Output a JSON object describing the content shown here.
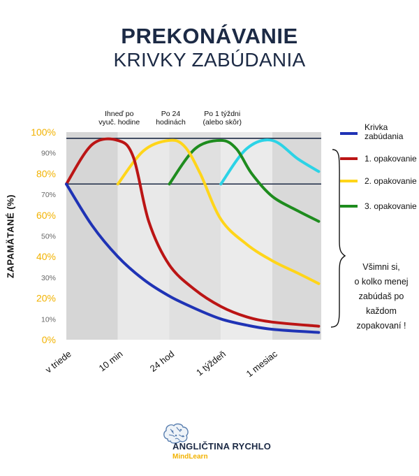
{
  "title": {
    "line1": "PREKONÁVANIE",
    "line2": "KRIVKY ZABÚDANIA"
  },
  "brand": {
    "name": "ANGLIČTINA RYCHLO",
    "sub": "MindLearn"
  },
  "note": [
    "Všimni si,",
    "o kolko menej",
    "zabúdaš po",
    "každom",
    "zopakovaní !"
  ],
  "chart_data": {
    "type": "line",
    "ylabel": "ZAPAMÄTANÉ  (%)",
    "ylim": [
      0,
      100
    ],
    "y_ticks_major": [
      "0%",
      "20%",
      "40%",
      "60%",
      "80%",
      "100%"
    ],
    "y_ticks_minor": [
      "10%",
      "30%",
      "50%",
      "70%",
      "90%"
    ],
    "x_categories": [
      "v triede",
      "10 min",
      "24 hod",
      "1 týždeň",
      "1 mesiac"
    ],
    "phase_labels": [
      {
        "at": 1,
        "lines": [
          "Ihneď po",
          "vyuč. hodine"
        ]
      },
      {
        "at": 2,
        "lines": [
          "Po 24",
          "hodinách"
        ]
      },
      {
        "at": 3,
        "lines": [
          "Po 1 týždni",
          "(alebo skôr)"
        ]
      }
    ],
    "reference_lines": [
      97,
      75
    ],
    "grid": false,
    "legend_position": "right",
    "series": [
      {
        "name": "Krivka zabúdania",
        "color": "#1f33b5",
        "x": [
          0,
          0.5,
          1,
          1.5,
          2,
          2.5,
          3,
          3.5,
          4,
          4.9
        ],
        "y": [
          75,
          55,
          40,
          29,
          21,
          15,
          10,
          7,
          5,
          3.5
        ]
      },
      {
        "name": "1. opakovanie",
        "color": "#bb1515",
        "x": [
          0,
          0.5,
          1,
          1.3,
          1.6,
          2,
          2.5,
          3,
          3.5,
          4,
          4.9
        ],
        "y": [
          75,
          94,
          96,
          88,
          57,
          36,
          24,
          16,
          11,
          8.5,
          6.5
        ]
      },
      {
        "name": "2. opakovanie",
        "color": "#ffd51a",
        "x": [
          1,
          1.5,
          2,
          2.3,
          2.6,
          3,
          3.5,
          4,
          4.5,
          4.9
        ],
        "y": [
          75,
          91,
          96,
          93,
          80,
          58,
          46,
          38,
          32,
          27
        ]
      },
      {
        "name": "3. opakovanie",
        "color": "#1e8c1e",
        "x": [
          2,
          2.5,
          3,
          3.3,
          3.6,
          4,
          4.5,
          4.9
        ],
        "y": [
          75,
          92,
          96,
          92,
          80,
          69,
          62,
          57
        ]
      },
      {
        "color": "#2cd3e6",
        "x": [
          3,
          3.5,
          4,
          4.5,
          4.9
        ],
        "y": [
          75,
          92,
          96,
          87,
          81
        ]
      }
    ]
  }
}
